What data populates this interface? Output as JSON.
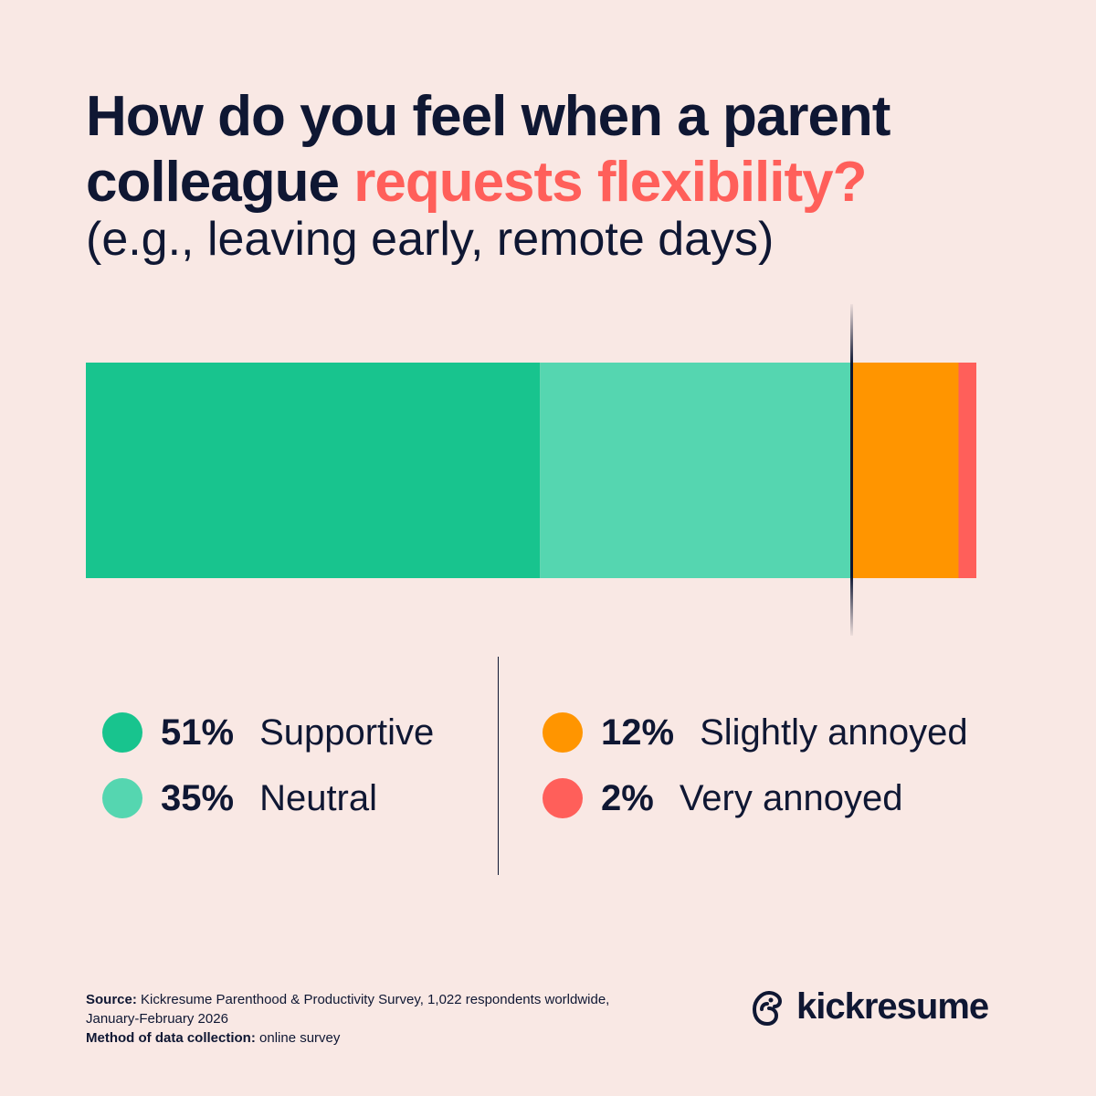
{
  "colors": {
    "background": "#F9E8E4",
    "text": "#0F1733",
    "highlight": "#FF5F5A"
  },
  "chart_data": {
    "type": "bar",
    "orientation": "horizontal-stacked",
    "title_part1": "How do you feel when a parent colleague ",
    "title_highlight": "requests flexibility?",
    "subtitle": "(e.g., leaving early, remote days)",
    "categories": [
      "Supportive",
      "Neutral",
      "Slightly annoyed",
      "Very annoyed"
    ],
    "values": [
      51,
      35,
      12,
      2
    ],
    "value_labels": [
      "51%",
      "35%",
      "12%",
      "2%"
    ],
    "colors": [
      "#18C48E",
      "#55D6B0",
      "#FF9500",
      "#FF5F5A"
    ],
    "divider_after_category": "Neutral",
    "xlim": [
      0,
      100
    ],
    "legend_placement": "bottom"
  },
  "footer": {
    "source_label": "Source:",
    "source_text": " Kickresume Parenthood & Productivity Survey, 1,022 respondents worldwide,",
    "source_text2": "January-February 2026",
    "method_label": "Method of data collection:",
    "method_text": " online survey"
  },
  "logo": {
    "text": "kickresume",
    "icon": "chameleon-logo-icon"
  }
}
